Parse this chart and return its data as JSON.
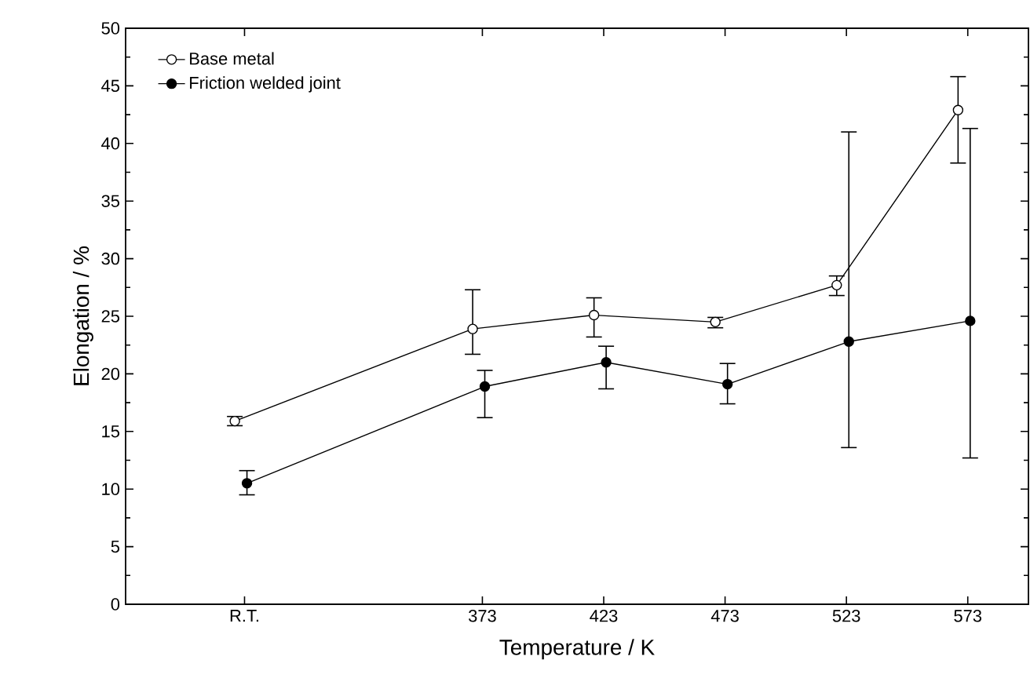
{
  "chart_data": {
    "type": "line",
    "xlabel": "Temperature / K",
    "ylabel": "Elongation / %",
    "xlim": [
      226,
      598
    ],
    "xticks": [
      {
        "value": 275,
        "label": "R.T."
      },
      373,
      423,
      473,
      523,
      573
    ],
    "ylim": [
      0,
      50
    ],
    "yticks": [
      0,
      5,
      10,
      15,
      20,
      25,
      30,
      35,
      40,
      45,
      50
    ],
    "series": [
      {
        "name": "Base metal",
        "color": "#000000",
        "x": [
          271,
          369,
          419,
          469,
          519,
          569
        ],
        "values": [
          15.9,
          23.9,
          25.1,
          24.5,
          27.7,
          42.9
        ],
        "errors": [
          [
            15.5,
            16.3
          ],
          [
            21.7,
            27.3
          ],
          [
            23.2,
            26.6
          ],
          [
            24.0,
            24.9
          ],
          [
            26.8,
            28.5
          ],
          [
            38.3,
            45.8
          ]
        ]
      },
      {
        "name": "Friction welded joint",
        "color": "#000000",
        "x": [
          276,
          374,
          424,
          474,
          524,
          574
        ],
        "values": [
          10.5,
          18.9,
          21.0,
          19.1,
          22.8,
          24.6
        ],
        "errors": [
          [
            9.5,
            11.6
          ],
          [
            16.2,
            20.3
          ],
          [
            18.7,
            22.4
          ],
          [
            17.4,
            20.9
          ],
          [
            13.6,
            41.0
          ],
          [
            12.7,
            41.3
          ]
        ]
      }
    ],
    "marker": "circle",
    "line_style": "solid",
    "legend": "top left"
  }
}
